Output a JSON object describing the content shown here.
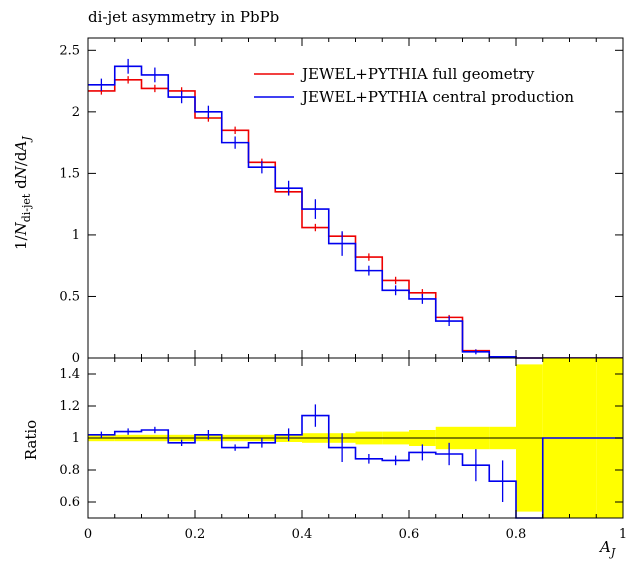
{
  "chart_data": [
    {
      "type": "line",
      "title": "di-jet asymmetry in PbPb",
      "ylabel": "1/N_di-jet dN/dA_J",
      "xlabel": "",
      "xlim": [
        0,
        1
      ],
      "ylim": [
        0,
        2.6
      ],
      "x_ticks": [
        "0",
        "0.2",
        "0.4",
        "0.6",
        "0.8",
        "1"
      ],
      "y_ticks": [
        "0",
        "0.5",
        "1",
        "1.5",
        "2",
        "2.5"
      ],
      "bin_edges": [
        0,
        0.05,
        0.1,
        0.15,
        0.2,
        0.25,
        0.3,
        0.35,
        0.4,
        0.45,
        0.5,
        0.55,
        0.6,
        0.65,
        0.7,
        0.75,
        0.8,
        0.85,
        0.9,
        0.95,
        1.0
      ],
      "legend_position": "top-right",
      "series": [
        {
          "name": "JEWEL+PYTHIA full geometry",
          "color": "#ee0000",
          "values": [
            2.17,
            2.26,
            2.19,
            2.17,
            1.95,
            1.85,
            1.59,
            1.35,
            1.06,
            0.99,
            0.82,
            0.63,
            0.53,
            0.33,
            0.06,
            0.01,
            0,
            0,
            0,
            0
          ],
          "errors": [
            0.03,
            0.03,
            0.03,
            0.03,
            0.03,
            0.03,
            0.03,
            0.03,
            0.03,
            0.03,
            0.03,
            0.03,
            0.03,
            0.02,
            0.01,
            0.005,
            0,
            0,
            0,
            0
          ]
        },
        {
          "name": "JEWEL+PYTHIA central production",
          "color": "#0000ee",
          "values": [
            2.22,
            2.37,
            2.3,
            2.12,
            2.0,
            1.75,
            1.55,
            1.38,
            1.21,
            0.93,
            0.71,
            0.55,
            0.48,
            0.3,
            0.05,
            0.01,
            0,
            0,
            0,
            0
          ],
          "errors": [
            0.05,
            0.06,
            0.06,
            0.05,
            0.05,
            0.05,
            0.05,
            0.06,
            0.08,
            0.1,
            0.04,
            0.04,
            0.04,
            0.04,
            0.02,
            0.005,
            0,
            0,
            0,
            0
          ]
        }
      ]
    },
    {
      "type": "line",
      "title": "",
      "ylabel": "Ratio",
      "xlabel": "A_J",
      "xlim": [
        0,
        1
      ],
      "ylim": [
        0.5,
        1.5
      ],
      "x_ticks": [
        "0",
        "0.2",
        "0.4",
        "0.6",
        "0.8",
        "1"
      ],
      "y_ticks": [
        "0.6",
        "0.8",
        "1",
        "1.2",
        "1.4"
      ],
      "reference_line": 1,
      "band_color": "#ffff00",
      "band_half_width": [
        0.02,
        0.02,
        0.02,
        0.02,
        0.02,
        0.02,
        0.02,
        0.025,
        0.03,
        0.03,
        0.04,
        0.04,
        0.05,
        0.07,
        0.07,
        0.07,
        0.46,
        0.5,
        0.5,
        0.5
      ],
      "series": [
        {
          "name": "JEWEL+PYTHIA central production",
          "color": "#0000ee",
          "values": [
            1.02,
            1.04,
            1.05,
            0.97,
            1.02,
            0.94,
            0.97,
            1.02,
            1.14,
            0.94,
            0.87,
            0.86,
            0.91,
            0.9,
            0.83,
            0.73,
            0.0,
            1.0,
            1.0,
            1.0
          ],
          "errors": [
            0.02,
            0.02,
            0.02,
            0.02,
            0.03,
            0.02,
            0.03,
            0.04,
            0.07,
            0.09,
            0.03,
            0.03,
            0.05,
            0.07,
            0.1,
            0.13,
            0,
            0,
            0,
            0
          ]
        }
      ]
    }
  ]
}
